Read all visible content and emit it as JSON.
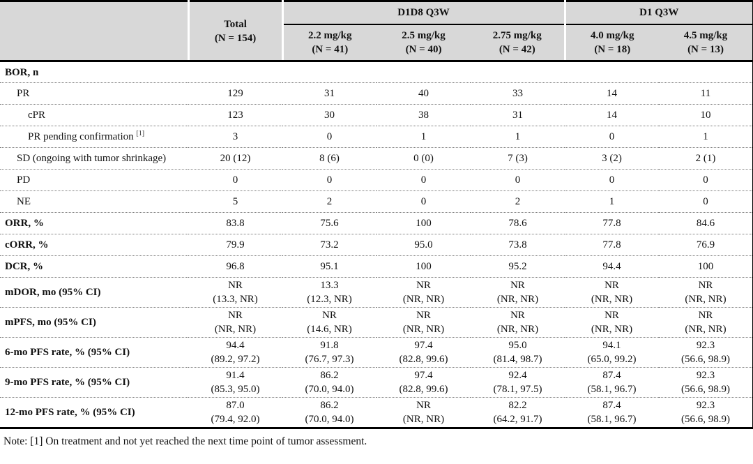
{
  "table": {
    "header": {
      "corner": "",
      "total": "Total\n(N = 154)",
      "groups": [
        {
          "label": "D1D8 Q3W"
        },
        {
          "label": "D1 Q3W"
        }
      ],
      "doses": [
        "2.2 mg/kg\n(N = 41)",
        "2.5 mg/kg\n(N = 40)",
        "2.75 mg/kg\n(N = 42)",
        "4.0 mg/kg\n(N = 18)",
        "4.5 mg/kg\n(N = 13)"
      ]
    },
    "rows": [
      {
        "label": "BOR, n",
        "bold": true,
        "indent": 0,
        "values": [
          "",
          "",
          "",
          "",
          "",
          ""
        ]
      },
      {
        "label": "PR",
        "bold": false,
        "indent": 1,
        "values": [
          "129",
          "31",
          "40",
          "33",
          "14",
          "11"
        ]
      },
      {
        "label": "cPR",
        "bold": false,
        "indent": 2,
        "values": [
          "123",
          "30",
          "38",
          "31",
          "14",
          "10"
        ]
      },
      {
        "label": "PR pending confirmation",
        "sup": "[1]",
        "bold": false,
        "indent": 2,
        "values": [
          "3",
          "0",
          "1",
          "1",
          "0",
          "1"
        ]
      },
      {
        "label": "SD (ongoing with tumor shrinkage)",
        "bold": false,
        "indent": 1,
        "values": [
          "20 (12)",
          "8 (6)",
          "0 (0)",
          "7 (3)",
          "3 (2)",
          "2 (1)"
        ]
      },
      {
        "label": "PD",
        "bold": false,
        "indent": 1,
        "values": [
          "0",
          "0",
          "0",
          "0",
          "0",
          "0"
        ]
      },
      {
        "label": "NE",
        "bold": false,
        "indent": 1,
        "values": [
          "5",
          "2",
          "0",
          "2",
          "1",
          "0"
        ]
      },
      {
        "label": "ORR, %",
        "bold": true,
        "indent": 0,
        "values": [
          "83.8",
          "75.6",
          "100",
          "78.6",
          "77.8",
          "84.6"
        ]
      },
      {
        "label": "cORR, %",
        "bold": true,
        "indent": 0,
        "values": [
          "79.9",
          "73.2",
          "95.0",
          "73.8",
          "77.8",
          "76.9"
        ]
      },
      {
        "label": "DCR, %",
        "bold": true,
        "indent": 0,
        "values": [
          "96.8",
          "95.1",
          "100",
          "95.2",
          "94.4",
          "100"
        ]
      },
      {
        "label": "mDOR, mo (95% CI)",
        "bold": true,
        "indent": 0,
        "values": [
          "NR\n(13.3, NR)",
          "13.3\n(12.3, NR)",
          "NR\n(NR, NR)",
          "NR\n(NR, NR)",
          "NR\n(NR, NR)",
          "NR\n(NR, NR)"
        ]
      },
      {
        "label": "mPFS, mo (95% CI)",
        "bold": true,
        "indent": 0,
        "values": [
          "NR\n(NR, NR)",
          "NR\n(14.6, NR)",
          "NR\n(NR, NR)",
          "NR\n(NR, NR)",
          "NR\n(NR, NR)",
          "NR\n(NR, NR)"
        ]
      },
      {
        "label": "6-mo PFS rate, % (95% CI)",
        "bold": true,
        "indent": 0,
        "values": [
          "94.4\n(89.2, 97.2)",
          "91.8\n(76.7, 97.3)",
          "97.4\n(82.8, 99.6)",
          "95.0\n(81.4, 98.7)",
          "94.1\n(65.0, 99.2)",
          "92.3\n(56.6, 98.9)"
        ]
      },
      {
        "label": "9-mo PFS rate, % (95% CI)",
        "bold": true,
        "indent": 0,
        "values": [
          "91.4\n(85.3, 95.0)",
          "86.2\n(70.0, 94.0)",
          "97.4\n(82.8, 99.6)",
          "92.4\n(78.1, 97.5)",
          "87.4\n(58.1, 96.7)",
          "92.3\n(56.6, 98.9)"
        ]
      },
      {
        "label": "12-mo PFS rate, % (95% CI)",
        "bold": true,
        "indent": 0,
        "values": [
          "87.0\n(79.4, 92.0)",
          "86.2\n(70.0, 94.0)",
          "NR\n(NR, NR)",
          "82.2\n(64.2, 91.7)",
          "87.4\n(58.1, 96.7)",
          "92.3\n(56.6, 98.9)"
        ]
      }
    ],
    "note": "Note: [1] On treatment and not yet reached the next time point of tumor assessment."
  },
  "colors": {
    "header_bg": "#d8d8d8",
    "border": "#000000",
    "dotted_rule": "#7a7a7a",
    "text": "#111111"
  }
}
